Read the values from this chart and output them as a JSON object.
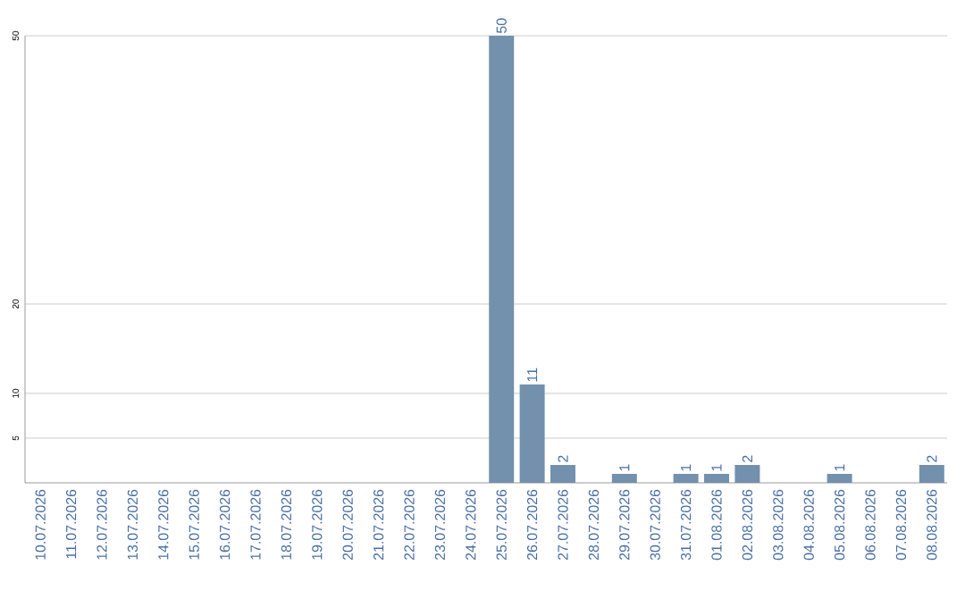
{
  "chart_data": {
    "type": "bar",
    "categories": [
      "10.07.2026",
      "11.07.2026",
      "12.07.2026",
      "13.07.2026",
      "14.07.2026",
      "15.07.2026",
      "16.07.2026",
      "17.07.2026",
      "18.07.2026",
      "19.07.2026",
      "20.07.2026",
      "21.07.2026",
      "22.07.2026",
      "23.07.2026",
      "24.07.2026",
      "25.07.2026",
      "26.07.2026",
      "27.07.2026",
      "28.07.2026",
      "29.07.2026",
      "30.07.2026",
      "31.07.2026",
      "01.08.2026",
      "02.08.2026",
      "03.08.2026",
      "04.08.2026",
      "05.08.2026",
      "06.08.2026",
      "07.08.2026",
      "08.08.2026"
    ],
    "values": [
      0,
      0,
      0,
      0,
      0,
      0,
      0,
      0,
      0,
      0,
      0,
      0,
      0,
      0,
      0,
      50,
      11,
      2,
      0,
      1,
      0,
      1,
      1,
      2,
      0,
      0,
      1,
      0,
      0,
      2
    ],
    "value_labels": [
      null,
      null,
      null,
      null,
      null,
      null,
      null,
      null,
      null,
      null,
      null,
      null,
      null,
      null,
      null,
      "50",
      "11",
      "2",
      null,
      "1",
      null,
      "1",
      "1",
      "2",
      null,
      null,
      "1",
      null,
      null,
      "2"
    ],
    "color": "#7390ad",
    "ylim": [
      0,
      50
    ],
    "yticks": [
      5,
      10,
      20,
      50
    ],
    "grid": "y"
  }
}
